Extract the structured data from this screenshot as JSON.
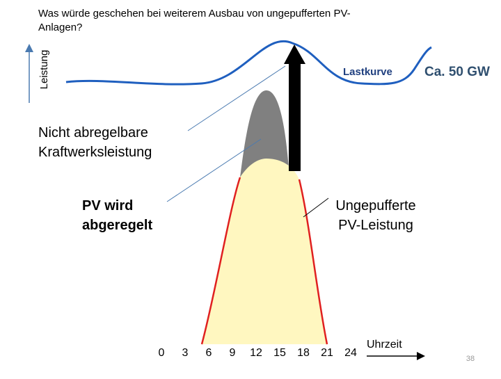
{
  "title": "Was würde geschehen bei weiterem Ausbau von ungepufferten PV-Anlagen?",
  "y_axis_label": "Leistung",
  "load_curve_label": "Lastkurve",
  "peak_label": "Ca. 50 GW",
  "baseload_label": [
    "Nicht abregelbare",
    "Kraftwerksleistung"
  ],
  "curtailed_label": [
    "PV wird",
    "abgeregelt"
  ],
  "pv_label": [
    "Ungepufferte",
    "PV-Leistung"
  ],
  "hours": [
    0,
    3,
    6,
    9,
    12,
    15,
    18,
    21,
    24
  ],
  "x_axis_label": "Uhrzeit",
  "page_number": 38
}
